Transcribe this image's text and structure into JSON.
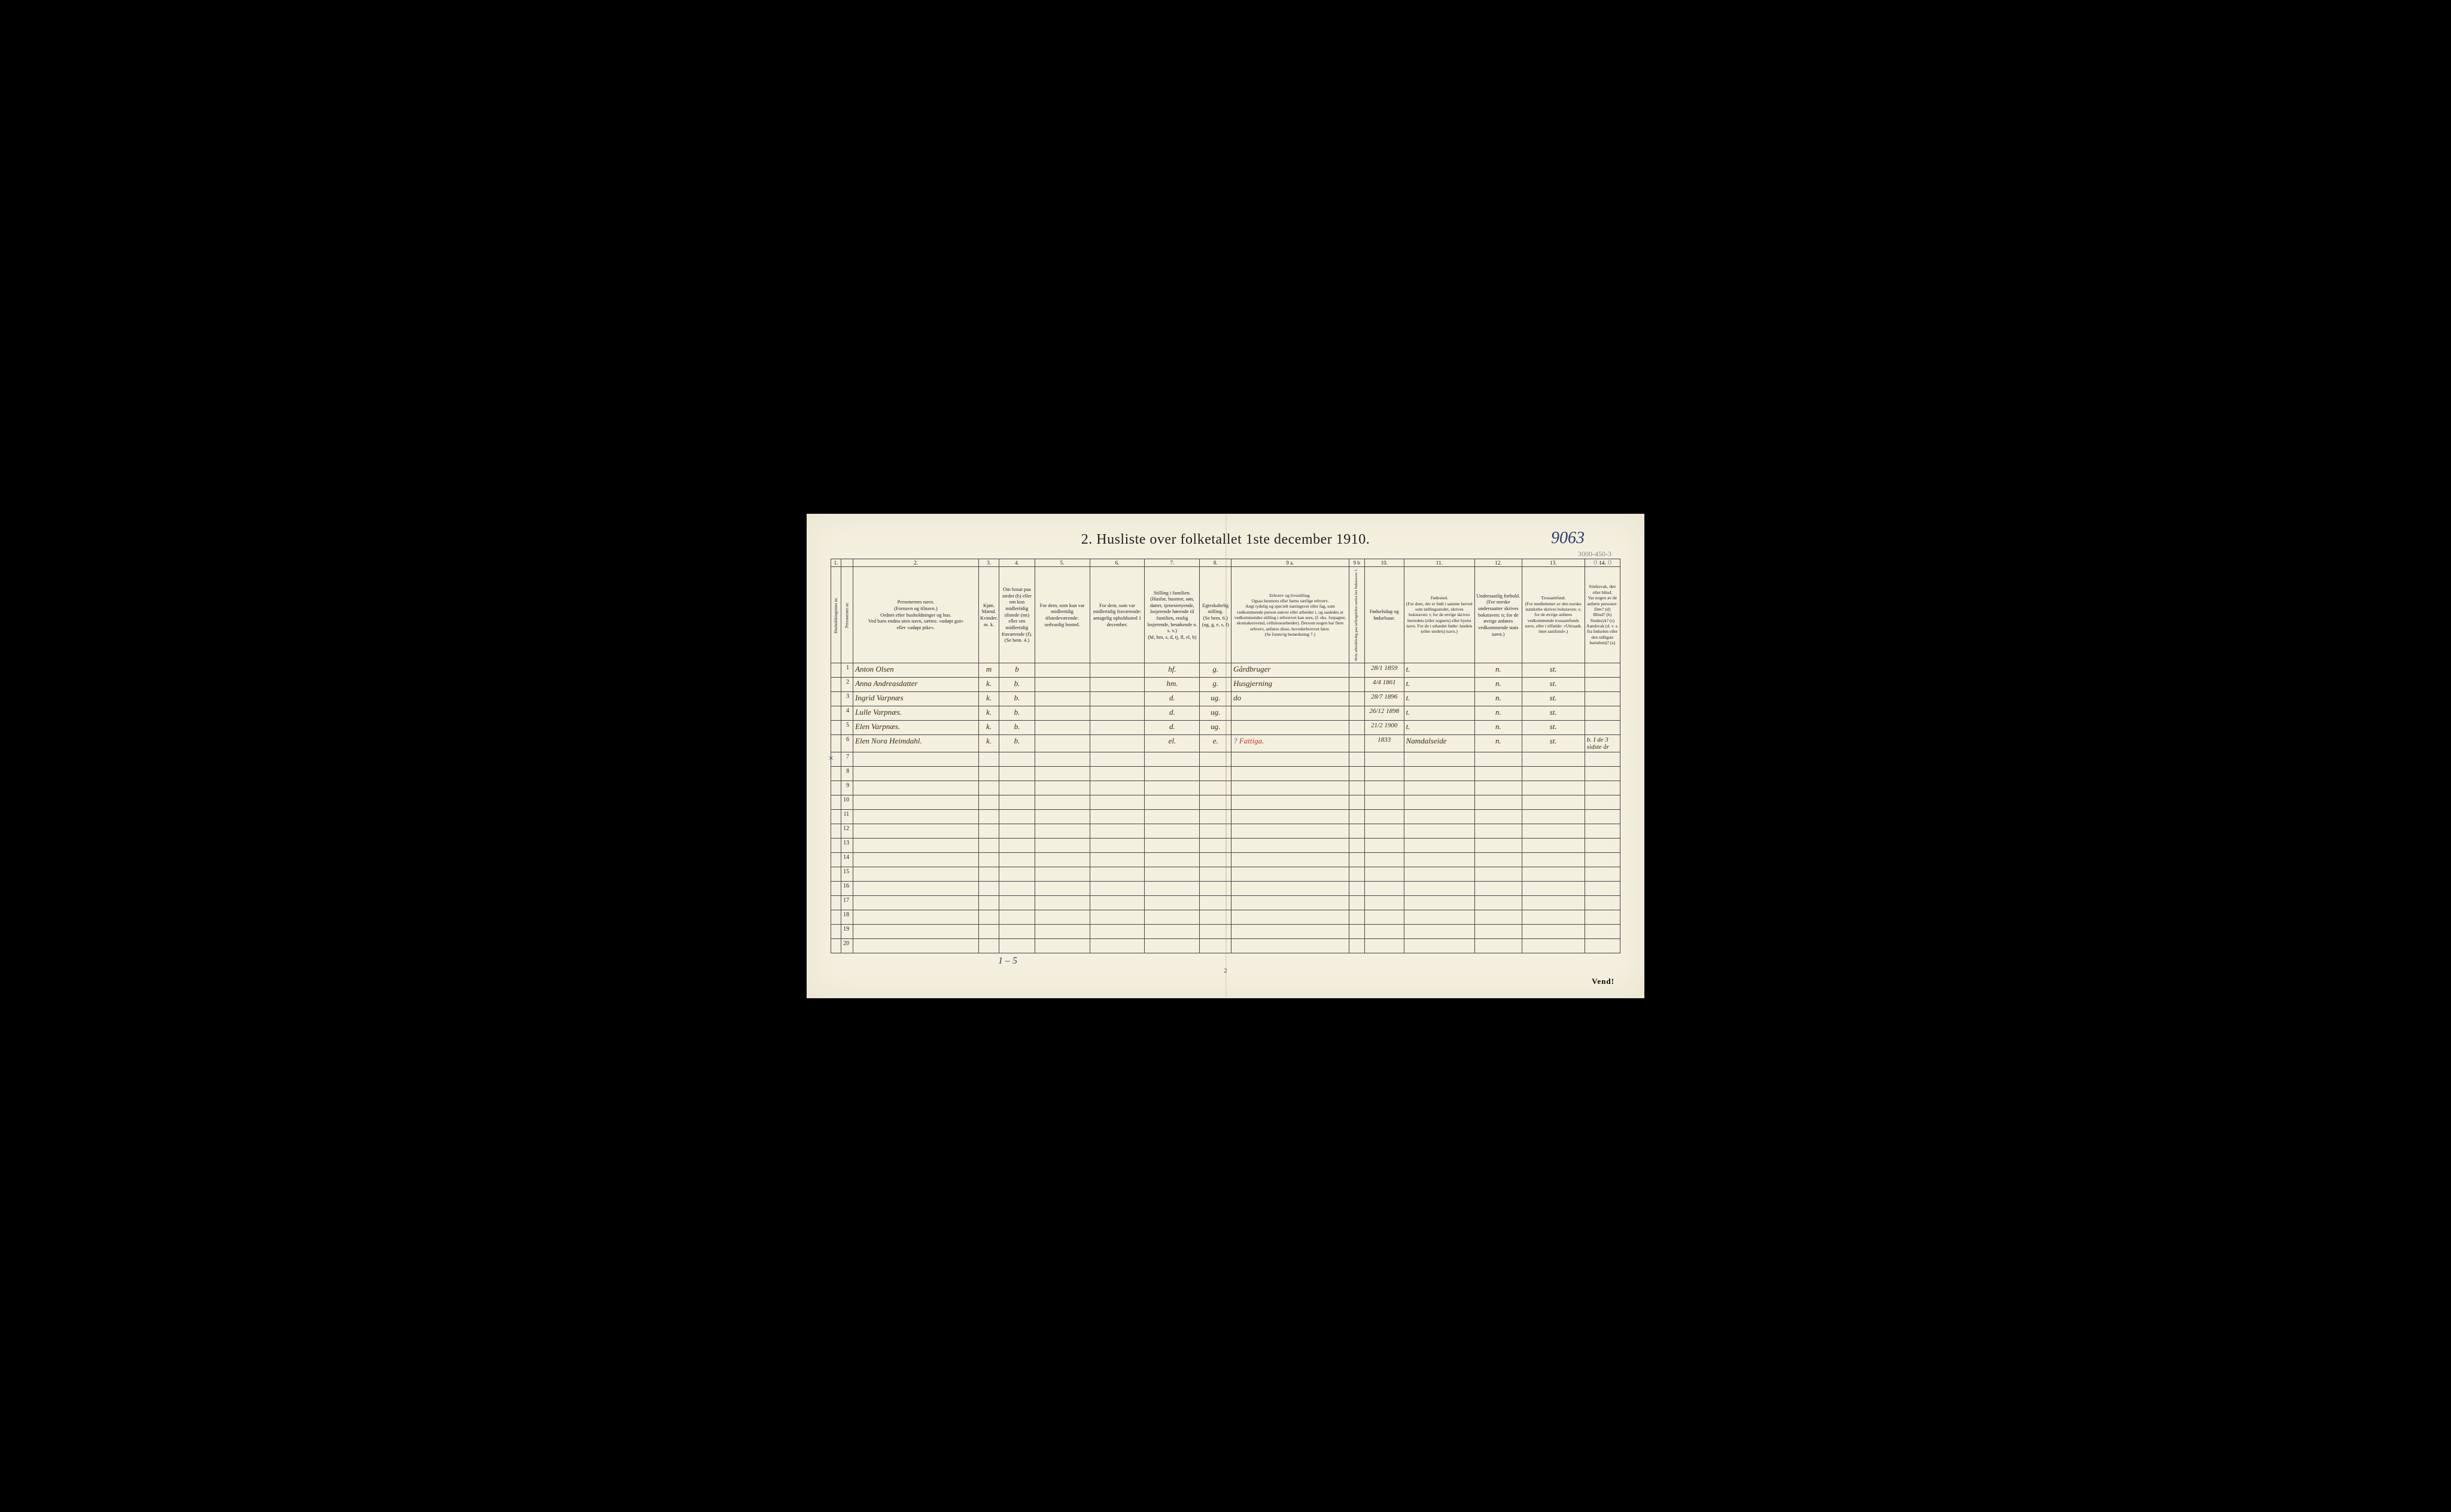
{
  "title": "2.  Husliste over folketallet 1ste december 1910.",
  "handwritten_top_right": "9063",
  "pencil_note_top_right": "3000-450-3\n0 — 0",
  "footer_handwritten": "1 – 5",
  "page_number": "2",
  "vend": "Vend!",
  "row6_mark": "×",
  "colors": {
    "paper": "#f4f0e0",
    "ink": "#222",
    "handwriting": "#3a2a10",
    "blue_ink": "#2a3a6b",
    "red_ink": "#c0392b",
    "purple_ink": "#6b4a9b",
    "border": "#444"
  },
  "column_numbers": [
    "1.",
    "",
    "2.",
    "3.",
    "4.",
    "5.",
    "6.",
    "7.",
    "8.",
    "9 a.",
    "9 b",
    "10.",
    "11.",
    "12.",
    "13.",
    "14."
  ],
  "headers": {
    "c1a": "Husholdningernes nr.",
    "c1b": "Personernes nr.",
    "c2": "Personernes navn.\n(Fornavn og tilnavn.)\nOrdnet efter husholdninger og hus.\nVed barn endnu uten navn, sættes: «udøpt gut»\neller «udøpt pike».",
    "c3": "Kjøn.\nMænd.\nKvinder.\nm.  k.",
    "c4": "Om bosat paa stedet (b) eller om kun midlertidig tilstede (mt) eller om midlertidig fraværende (f).\n(Se bem. 4.)",
    "c5": "For dem, som kun var midlertidig tilstedeværende:\nsedvanlig bosted.",
    "c6": "For dem, som var midlertidig fraværende:\nantagelig opholdssted 1 december.",
    "c7": "Stilling i familien.\n(Husfar, husmor, søn, datter, tjenestetyende, losjerende hørende til familien, enslig losjerende, besøkende o. s. v.)\n(hf, hm, s, d, tj, fl, el, b)",
    "c8": "Egteskabelig stilling.\n(Se bem. 6.)\n(ug, g, e, s, f)",
    "c9a": "Erhverv og livsstilling.\nOgsaa husmors eller barns særlige erhverv.\nAngi tydelig og specielt næringsvei eller fag, som vedkommende person utøver eller arbeider i, og saaledes at vedkommendes stilling i erhvervet kan sees, (f. eks. forpagter, skomakersvend, cellulosearbeider). Dersom nogen har flere erhverv, anføres disse, hovederhvervet først.\n(Se forøvrig bemerkning 7.)",
    "c9b": "Hvis arbeidsledig paa tællingstiden sættes her bokstaven: l.",
    "c10": "Fødselsdag og fødselsaar.",
    "c11": "Fødested.\n(For dem, der er født i samme herred som tællingsstedet, skrives bokstaven: t; for de øvrige skrives herredets (eller sognets) eller byens navn. For de i utlandet fødte: landets (eller stedets) navn.)",
    "c12": "Undersaatlig forhold.\n(For norske undersaatter skrives bokstaven: n; for de øvrige anføres vedkommende stats navn.)",
    "c13": "Trossamfund.\n(For medlemmer av den norske statskirke skrives bokstaven: s; for de øvrige anføres vedkommende trossamfunds navn, eller i tilfælde: «Uttraadt, intet samfund».)",
    "c14": "Sindssvak, døv eller blind.\nVar nogen av de anførte personer:\nDøv? (d)\nBlind? (b)\nSindssyk? (s)\nAandsvak (d. v. s. fra fødselen eller den tidligste barndom)? (a)"
  },
  "rows": [
    {
      "n": "1",
      "name": "Anton Olsen",
      "mk": "m",
      "res": "b",
      "c5": "",
      "c6": "",
      "fam": "hf.",
      "mar": "g.",
      "occ": "Gårdbruger",
      "c9b": "",
      "dob": "28/1 1859",
      "birthplace": "t.",
      "nat": "n.",
      "rel": "st.",
      "c14": ""
    },
    {
      "n": "2",
      "name": "Anna Andreasdatter",
      "mk": "k.",
      "res": "b.",
      "c5": "",
      "c6": "",
      "fam": "hm.",
      "mar": "g.",
      "occ": "Husgjerning",
      "c9b": "",
      "dob": "4/4 1861",
      "birthplace": "t.",
      "nat": "n.",
      "rel": "st.",
      "c14": ""
    },
    {
      "n": "3",
      "name": "Ingrid Varpnæs",
      "mk": "k.",
      "res": "b.",
      "c5": "",
      "c6": "",
      "fam": "d.",
      "mar": "ug.",
      "occ": "do",
      "c9b": "",
      "dob": "28/7 1896",
      "birthplace": "t.",
      "nat": "n.",
      "rel": "st.",
      "c14": ""
    },
    {
      "n": "4",
      "name": "Lulle Varpnæs.",
      "mk": "k.",
      "res": "b.",
      "c5": "",
      "c6": "",
      "fam": "d.",
      "mar": "ug.",
      "occ": "",
      "c9b": "",
      "dob": "26/12 1898",
      "birthplace": "t.",
      "nat": "n.",
      "rel": "st.",
      "c14": ""
    },
    {
      "n": "5",
      "name": "Elen Varpnæs.",
      "mk": "k.",
      "res": "b.",
      "c5": "",
      "c6": "",
      "fam": "d.",
      "mar": "ug.",
      "occ": "",
      "c9b": "",
      "dob": "21/2 1900",
      "birthplace": "t.",
      "nat": "n.",
      "rel": "st.",
      "c14": ""
    },
    {
      "n": "6",
      "name": "Elen Nora Heimdahl.",
      "mk": "k.",
      "res": "b.",
      "c5": "",
      "c6": "",
      "fam": "el.",
      "mar": "e.",
      "occ_prefix": "?",
      "occ": "Fattiga.",
      "c9b": "",
      "dob": "1833",
      "birthplace": "Namdalseide",
      "nat": "n.",
      "rel": "st.",
      "c14": "b. I de 3 sidste år"
    },
    {
      "n": "7"
    },
    {
      "n": "8"
    },
    {
      "n": "9"
    },
    {
      "n": "10"
    },
    {
      "n": "11"
    },
    {
      "n": "12"
    },
    {
      "n": "13"
    },
    {
      "n": "14"
    },
    {
      "n": "15"
    },
    {
      "n": "16"
    },
    {
      "n": "17"
    },
    {
      "n": "18"
    },
    {
      "n": "19"
    },
    {
      "n": "20"
    }
  ],
  "column_widths_pct": [
    1.3,
    1.5,
    16,
    2.2,
    4.5,
    7,
    7,
    7,
    4,
    15,
    2,
    5,
    9,
    6,
    8,
    9
  ]
}
